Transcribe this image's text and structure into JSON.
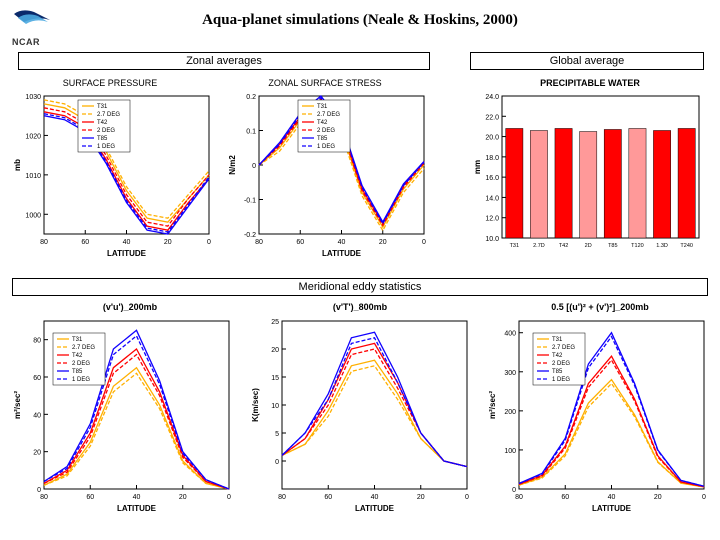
{
  "title": "Aqua-planet simulations (Neale & Hoskins, 2000)",
  "logo_text": "NCAR",
  "sections": {
    "zonal": "Zonal averages",
    "global": "Global average",
    "meridional": "Meridional eddy statistics"
  },
  "panel_labels": {
    "surface_pressure": "SURFACE PRESSURE",
    "zonal_stress": "ZONAL SURFACE STRESS",
    "precip_water": "PRECIPITABLE WATER",
    "vu": "(v'u')_200mb",
    "vt": "(v'T')_800mb",
    "ke": "0.5 [(u')² + (v')²]_200mb"
  },
  "legend_labels": [
    "T31",
    "2.7 DEG",
    "T42",
    "2 DEG",
    "T85",
    "1 DEG"
  ],
  "legend_colors": [
    "#ffb000",
    "#ffb000",
    "#ff0000",
    "#ff0000",
    "#1000ff",
    "#1000ff"
  ],
  "legend_dashes": [
    "",
    "4,2",
    "",
    "4,2",
    "",
    "4,2"
  ],
  "axis_label_x": "LATITUDE",
  "charts": {
    "surface_pressure": {
      "ylabel": "mb",
      "xlim": [
        80,
        0
      ],
      "ylim": [
        995,
        1030
      ],
      "yticks": [
        1000,
        1010,
        1020,
        1030
      ],
      "xticks": [
        80,
        60,
        40,
        20,
        0
      ],
      "series": [
        {
          "color": "#ffb000",
          "dash": "",
          "y": [
            1028,
            1027,
            1024,
            1016,
            1006,
            999,
            998,
            1004,
            1010
          ]
        },
        {
          "color": "#ffb000",
          "dash": "4,2",
          "y": [
            1029,
            1028,
            1025,
            1017,
            1007,
            1000,
            999,
            1005,
            1011
          ]
        },
        {
          "color": "#ff0000",
          "dash": "",
          "y": [
            1026,
            1025,
            1022,
            1014,
            1004,
            997,
            996,
            1003,
            1009
          ]
        },
        {
          "color": "#ff0000",
          "dash": "4,2",
          "y": [
            1027,
            1026,
            1023,
            1015,
            1005,
            998,
            997,
            1004,
            1010
          ]
        },
        {
          "color": "#1000ff",
          "dash": "",
          "y": [
            1025,
            1024,
            1021,
            1013,
            1003,
            996,
            995,
            1002,
            1009
          ]
        },
        {
          "color": "#1000ff",
          "dash": "4,2",
          "y": [
            1025.5,
            1024.5,
            1021.5,
            1013.5,
            1003.5,
            996.5,
            995.5,
            1002.5,
            1009.5
          ]
        }
      ]
    },
    "zonal_stress": {
      "ylabel": "N/m2",
      "xlim": [
        80,
        0
      ],
      "ylim": [
        -0.2,
        0.2
      ],
      "yticks": [
        -0.2,
        -0.1,
        0,
        0.1,
        0.2
      ],
      "xticks": [
        80,
        60,
        40,
        20,
        0
      ],
      "series": [
        {
          "color": "#ffb000",
          "dash": "",
          "y": [
            0.0,
            0.05,
            0.13,
            0.18,
            0.1,
            -0.08,
            -0.18,
            -0.07,
            0.0
          ]
        },
        {
          "color": "#ffb000",
          "dash": "4,2",
          "y": [
            0.0,
            0.04,
            0.12,
            0.17,
            0.09,
            -0.09,
            -0.19,
            -0.08,
            -0.01
          ]
        },
        {
          "color": "#ff0000",
          "dash": "",
          "y": [
            0.0,
            0.06,
            0.14,
            0.19,
            0.11,
            -0.07,
            -0.17,
            -0.06,
            0.01
          ]
        },
        {
          "color": "#ff0000",
          "dash": "4,2",
          "y": [
            0.0,
            0.055,
            0.135,
            0.185,
            0.105,
            -0.075,
            -0.175,
            -0.065,
            0.005
          ]
        },
        {
          "color": "#1000ff",
          "dash": "",
          "y": [
            0.0,
            0.065,
            0.15,
            0.2,
            0.12,
            -0.06,
            -0.165,
            -0.055,
            0.01
          ]
        },
        {
          "color": "#1000ff",
          "dash": "4,2",
          "y": [
            0.0,
            0.06,
            0.145,
            0.195,
            0.115,
            -0.065,
            -0.17,
            -0.06,
            0.008
          ]
        }
      ]
    },
    "precip_water": {
      "ylabel": "mm",
      "categories": [
        "T31",
        "2.7D",
        "T42",
        "2D",
        "T85",
        "T120",
        "1.3D",
        "T240"
      ],
      "ylim": [
        10,
        24
      ],
      "yticks": [
        10,
        12,
        14,
        16,
        18,
        20,
        22,
        24
      ],
      "values": [
        20.8,
        20.6,
        20.8,
        20.5,
        20.7,
        20.8,
        20.6,
        20.8
      ],
      "bar_fill": "#ff0000",
      "alt_fill": "#ff9999"
    },
    "vu": {
      "ylabel": "m²/sec²",
      "xlim": [
        80,
        0
      ],
      "ylim": [
        0,
        90
      ],
      "yticks": [
        0,
        20,
        40,
        60,
        80
      ],
      "xticks": [
        80,
        60,
        40,
        20,
        0
      ],
      "series": [
        {
          "color": "#ffb000",
          "dash": "",
          "y": [
            2,
            8,
            25,
            55,
            65,
            45,
            15,
            3,
            0
          ]
        },
        {
          "color": "#ffb000",
          "dash": "4,2",
          "y": [
            2,
            7,
            23,
            52,
            62,
            43,
            14,
            3,
            0
          ]
        },
        {
          "color": "#ff0000",
          "dash": "",
          "y": [
            3,
            10,
            30,
            65,
            75,
            52,
            18,
            4,
            0
          ]
        },
        {
          "color": "#ff0000",
          "dash": "4,2",
          "y": [
            3,
            9,
            28,
            62,
            72,
            50,
            17,
            4,
            0
          ]
        },
        {
          "color": "#1000ff",
          "dash": "",
          "y": [
            4,
            12,
            35,
            75,
            85,
            58,
            20,
            5,
            0
          ]
        },
        {
          "color": "#1000ff",
          "dash": "4,2",
          "y": [
            4,
            11,
            33,
            72,
            82,
            56,
            19,
            5,
            0
          ]
        }
      ]
    },
    "vt": {
      "ylabel": "K(m/sec)",
      "xlim": [
        80,
        0
      ],
      "ylim": [
        -5,
        25
      ],
      "yticks": [
        0,
        5,
        10,
        15,
        20,
        25
      ],
      "xticks": [
        80,
        60,
        40,
        20,
        0
      ],
      "series": [
        {
          "color": "#ffb000",
          "dash": "",
          "y": [
            1,
            3,
            9,
            17,
            18,
            12,
            4,
            0,
            -1
          ]
        },
        {
          "color": "#ffb000",
          "dash": "4,2",
          "y": [
            1,
            3,
            8,
            16,
            17,
            11,
            4,
            0,
            -1
          ]
        },
        {
          "color": "#ff0000",
          "dash": "",
          "y": [
            1,
            4,
            11,
            20,
            21,
            14,
            5,
            0,
            -1
          ]
        },
        {
          "color": "#ff0000",
          "dash": "4,2",
          "y": [
            1,
            4,
            10,
            19,
            20,
            13,
            5,
            0,
            -1
          ]
        },
        {
          "color": "#1000ff",
          "dash": "",
          "y": [
            1,
            5,
            12,
            22,
            23,
            15,
            5,
            0,
            -1
          ]
        },
        {
          "color": "#1000ff",
          "dash": "4,2",
          "y": [
            1,
            5,
            11,
            21,
            22,
            14,
            5,
            0,
            -1
          ]
        }
      ]
    },
    "ke": {
      "ylabel": "m²/sec²",
      "xlim": [
        80,
        0
      ],
      "ylim": [
        0,
        430
      ],
      "yticks": [
        0,
        100,
        200,
        300,
        400
      ],
      "xticks": [
        80,
        60,
        40,
        20,
        0
      ],
      "series": [
        {
          "color": "#ffb000",
          "dash": "",
          "y": [
            10,
            30,
            90,
            220,
            280,
            190,
            70,
            15,
            5
          ]
        },
        {
          "color": "#ffb000",
          "dash": "4,2",
          "y": [
            10,
            28,
            85,
            210,
            270,
            185,
            68,
            15,
            5
          ]
        },
        {
          "color": "#ff0000",
          "dash": "",
          "y": [
            12,
            35,
            110,
            270,
            340,
            230,
            85,
            18,
            6
          ]
        },
        {
          "color": "#ff0000",
          "dash": "4,2",
          "y": [
            12,
            33,
            105,
            260,
            330,
            225,
            82,
            18,
            6
          ]
        },
        {
          "color": "#1000ff",
          "dash": "",
          "y": [
            14,
            40,
            130,
            320,
            400,
            270,
            100,
            22,
            7
          ]
        },
        {
          "color": "#1000ff",
          "dash": "4,2",
          "y": [
            14,
            38,
            125,
            310,
            390,
            265,
            98,
            22,
            7
          ]
        }
      ]
    }
  }
}
